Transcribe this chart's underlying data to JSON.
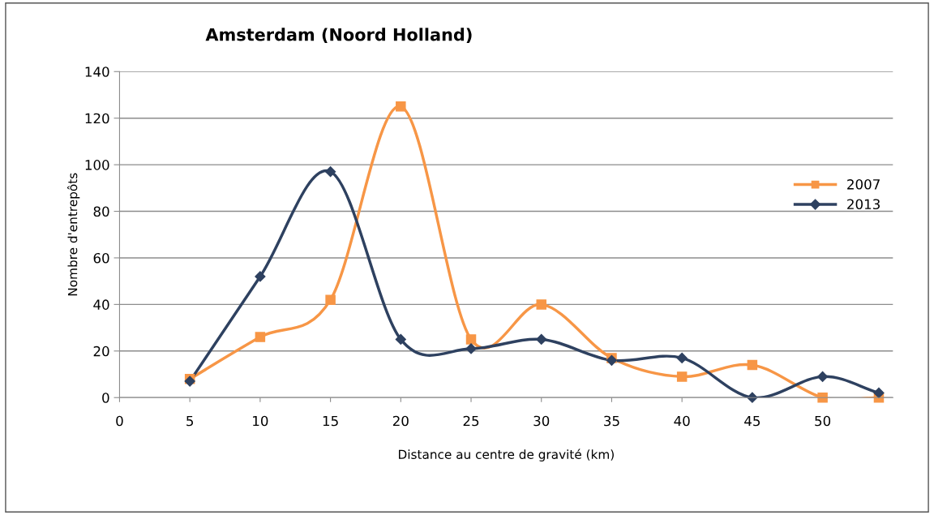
{
  "chart_data": {
    "type": "line",
    "title": "Amsterdam (Noord Holland)",
    "xlabel": "Distance au centre de gravité (km)",
    "ylabel": "Nombre d'entrepôts",
    "x": [
      5,
      10,
      15,
      20,
      25,
      30,
      35,
      40,
      45,
      50,
      54
    ],
    "series": [
      {
        "name": "2007",
        "color": "#f79646",
        "marker": "square",
        "values": [
          8,
          26,
          42,
          125,
          25,
          40,
          17,
          9,
          14,
          0,
          0
        ]
      },
      {
        "name": "2013",
        "color": "#2e4160",
        "marker": "diamond",
        "values": [
          7,
          52,
          97,
          25,
          21,
          25,
          16,
          17,
          0,
          9,
          2
        ]
      }
    ],
    "xlim": [
      0,
      55
    ],
    "xticks": [
      0,
      5,
      10,
      15,
      20,
      25,
      30,
      35,
      40,
      45,
      50
    ],
    "ylim": [
      0,
      140
    ],
    "yticks": [
      0,
      20,
      40,
      60,
      80,
      100,
      120,
      140
    ],
    "grid": "y",
    "legend": "right",
    "line_style": "solid"
  }
}
